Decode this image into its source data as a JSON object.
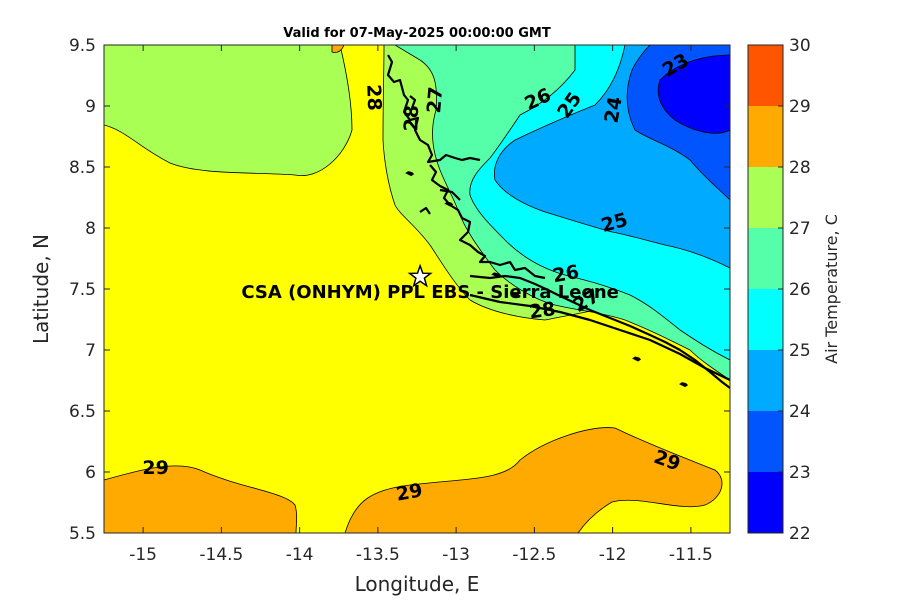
{
  "title": "Valid for 07-May-2025 00:00:00 GMT",
  "x_axis": {
    "label": "Longitude, E",
    "range": [
      -15.25,
      -11.25
    ],
    "ticks": [
      {
        "value": -15,
        "label": "-15"
      },
      {
        "value": -14.5,
        "label": "-14.5"
      },
      {
        "value": -14,
        "label": "-14"
      },
      {
        "value": -13.5,
        "label": "-13.5"
      },
      {
        "value": -13,
        "label": "-13"
      },
      {
        "value": -12.5,
        "label": "-12.5"
      },
      {
        "value": -12,
        "label": "-12"
      },
      {
        "value": -11.5,
        "label": "-11.5"
      }
    ]
  },
  "y_axis": {
    "label": "Latitude, N",
    "range": [
      5.5,
      9.5
    ],
    "ticks": [
      {
        "value": 5.5,
        "label": "5.5"
      },
      {
        "value": 6,
        "label": "6"
      },
      {
        "value": 6.5,
        "label": "6.5"
      },
      {
        "value": 7,
        "label": "7"
      },
      {
        "value": 7.5,
        "label": "7.5"
      },
      {
        "value": 8,
        "label": "8"
      },
      {
        "value": 8.5,
        "label": "8.5"
      },
      {
        "value": 9,
        "label": "9"
      },
      {
        "value": 9.5,
        "label": "9.5"
      }
    ]
  },
  "colorbar": {
    "label": "Air Temperature, C",
    "levels": [
      {
        "from": 22,
        "to": 23,
        "color": "#0000ff"
      },
      {
        "from": 23,
        "to": 24,
        "color": "#0055ff"
      },
      {
        "from": 24,
        "to": 25,
        "color": "#00aaff"
      },
      {
        "from": 25,
        "to": 26,
        "color": "#00ffff"
      },
      {
        "from": 26,
        "to": 27,
        "color": "#55ffaa"
      },
      {
        "from": 27,
        "to": 28,
        "color": "#aaff55"
      },
      {
        "from": 28,
        "to": 29,
        "color": "#ffff00"
      },
      {
        "from": 29,
        "to": 30,
        "color": "#ffaa00"
      }
    ],
    "ticks": [
      "22",
      "23",
      "24",
      "25",
      "26",
      "27",
      "28",
      "29",
      "30"
    ],
    "top_color": "#ff5500"
  },
  "station": {
    "name": "CSA (ONHYM) PPL EBS  - Sierra Leone",
    "lon": -13.23,
    "lat": 7.6
  },
  "contour_labels": [
    {
      "text": "29",
      "lon": -14.92,
      "lat": 6.04,
      "rot": 0
    },
    {
      "text": "29",
      "lon": -13.3,
      "lat": 5.84,
      "rot": -10
    },
    {
      "text": "29",
      "lon": -11.65,
      "lat": 6.1,
      "rot": 20
    },
    {
      "text": "28",
      "lon": -13.52,
      "lat": 9.07,
      "rot": 88
    },
    {
      "text": "28",
      "lon": -13.29,
      "lat": 8.9,
      "rot": -88
    },
    {
      "text": "28",
      "lon": -12.45,
      "lat": 7.33,
      "rot": -8
    },
    {
      "text": "27",
      "lon": -13.14,
      "lat": 9.05,
      "rot": -85
    },
    {
      "text": "27",
      "lon": -12.17,
      "lat": 7.41,
      "rot": -30
    },
    {
      "text": "26",
      "lon": -12.48,
      "lat": 9.06,
      "rot": -25
    },
    {
      "text": "26",
      "lon": -12.3,
      "lat": 7.63,
      "rot": -10
    },
    {
      "text": "25",
      "lon": -12.28,
      "lat": 9.01,
      "rot": -55
    },
    {
      "text": "25",
      "lon": -11.99,
      "lat": 8.05,
      "rot": -15
    },
    {
      "text": "24",
      "lon": -12.0,
      "lat": 8.97,
      "rot": -80
    },
    {
      "text": "23",
      "lon": -11.6,
      "lat": 9.34,
      "rot": -30
    }
  ],
  "coastline_islands": [
    {
      "lon": -13.3,
      "lat": 8.45
    },
    {
      "lon": -13.05,
      "lat": 8.2
    },
    {
      "lon": -12.75,
      "lat": 7.62
    },
    {
      "lon": -12.62,
      "lat": 7.45
    },
    {
      "lon": -11.85,
      "lat": 6.93
    },
    {
      "lon": -11.55,
      "lat": 6.72
    }
  ]
}
